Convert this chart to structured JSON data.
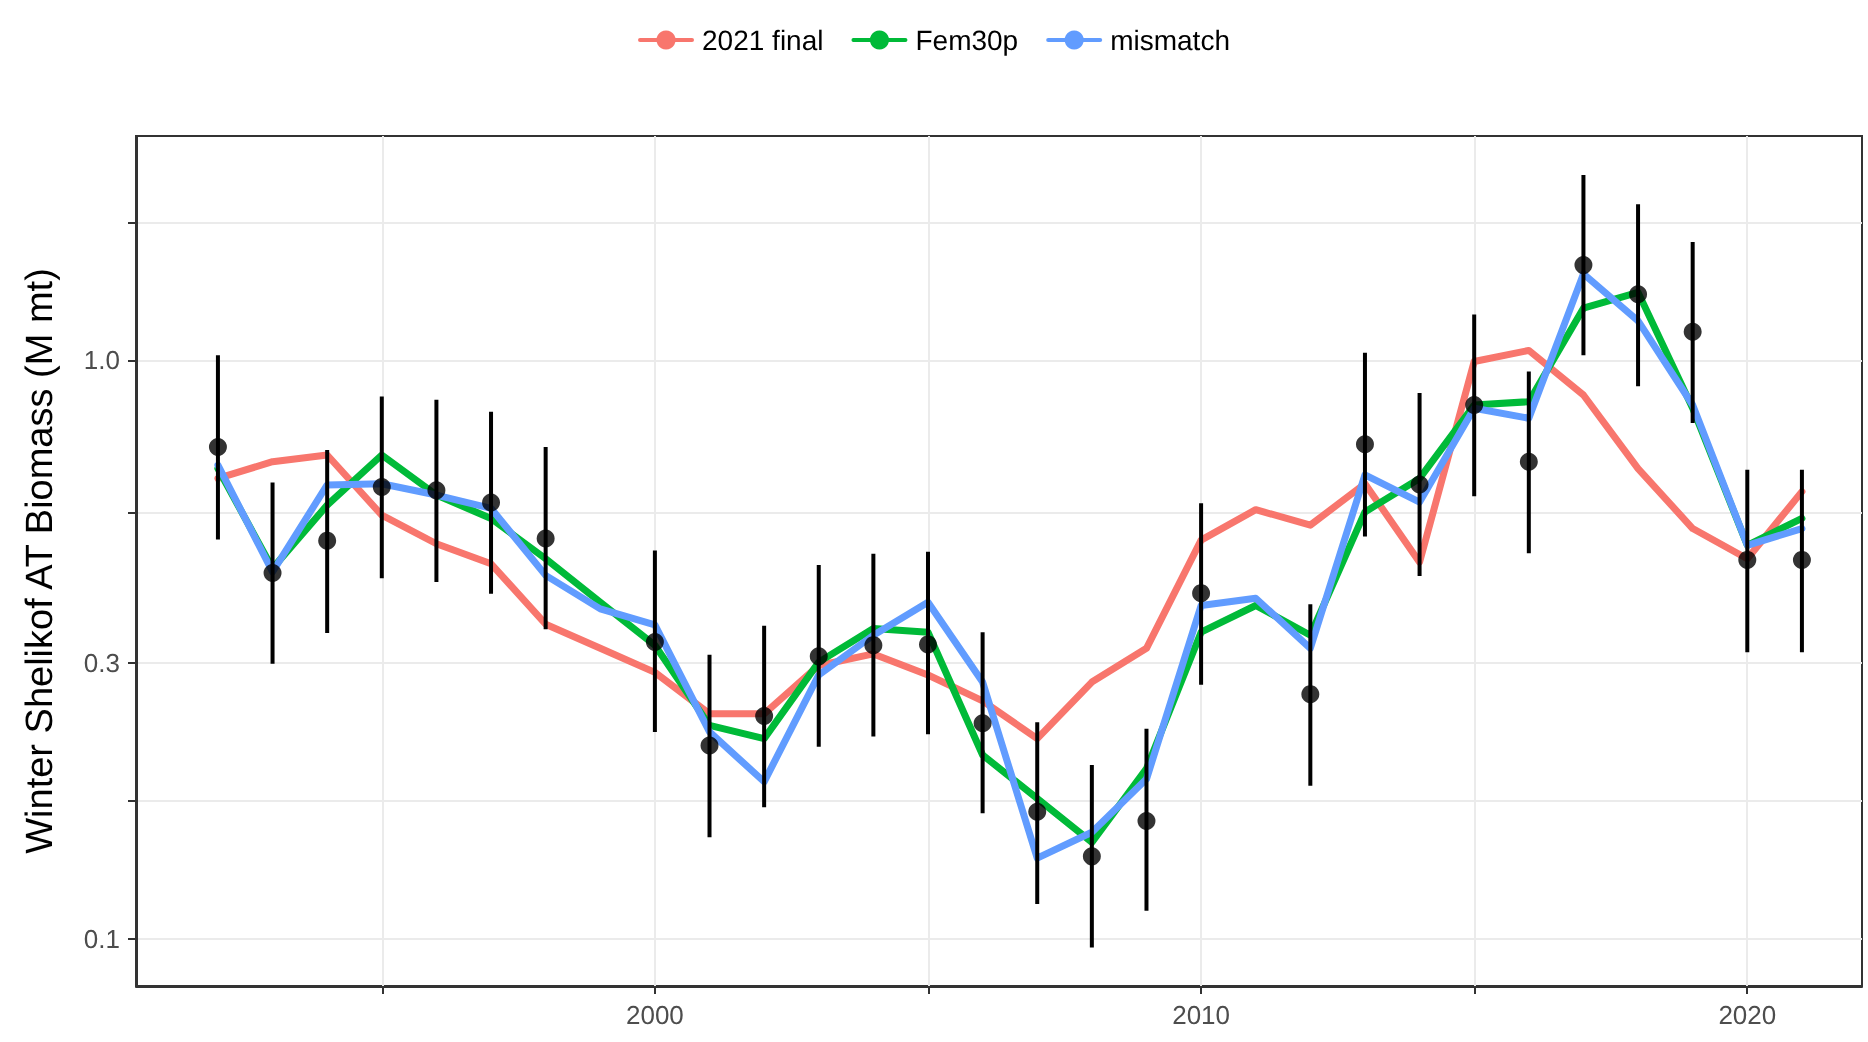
{
  "chart_data": {
    "type": "line",
    "ylabel": "Winter Shelikof AT Biomass (M mt)",
    "log": "y",
    "grid": true,
    "legend": "top",
    "line_style": "solid",
    "xlim": [
      1990.5,
      2022.1
    ],
    "xticks": [
      {
        "value": 1995,
        "label": null
      },
      2000,
      {
        "value": 2005,
        "label": null
      },
      2010,
      {
        "value": 2015,
        "label": null
      },
      2020
    ],
    "ylim": [
      0.083,
      2.44
    ],
    "yticks": [
      0.1,
      {
        "value": 0.173,
        "label": null
      },
      0.3,
      {
        "value": 0.546,
        "label": null
      },
      {
        "value": 1,
        "label": "1.0"
      },
      {
        "value": 1.73,
        "label": null
      }
    ],
    "x": [
      1992,
      1993,
      1994,
      1995,
      1996,
      1997,
      1998,
      1999,
      2000,
      2001,
      2002,
      2003,
      2004,
      2005,
      2006,
      2007,
      2008,
      2009,
      2010,
      2011,
      2012,
      2013,
      2014,
      2015,
      2016,
      2017,
      2018,
      2019,
      2020,
      2021
    ],
    "series": [
      {
        "name": "2021 final",
        "type": "line",
        "marker": "none",
        "color": "#f8766d",
        "values": [
          0.625,
          0.668,
          0.686,
          0.54,
          0.482,
          0.445,
          0.35,
          0.318,
          0.289,
          0.245,
          0.245,
          0.297,
          0.311,
          0.286,
          0.258,
          0.222,
          0.278,
          0.318,
          0.489,
          0.552,
          0.519,
          0.612,
          0.448,
          0.995,
          1.04,
          0.871,
          0.65,
          0.512,
          0.454,
          0.593
        ]
      },
      {
        "name": "Fem30p",
        "type": "line",
        "marker": "none",
        "color": "#00ba38",
        "values": [
          0.65,
          0.437,
          0.562,
          0.686,
          0.585,
          0.533,
          0.454,
          0.382,
          0.322,
          0.234,
          0.222,
          0.301,
          0.344,
          0.339,
          0.208,
          0.175,
          0.147,
          0.197,
          0.339,
          0.377,
          0.335,
          0.547,
          0.625,
          0.837,
          0.848,
          1.23,
          1.31,
          0.826,
          0.479,
          0.533
        ]
      },
      {
        "name": "mismatch",
        "type": "line",
        "marker": "none",
        "color": "#619cff",
        "values": [
          0.659,
          0.431,
          0.609,
          0.612,
          0.585,
          0.555,
          0.425,
          0.372,
          0.349,
          0.228,
          0.187,
          0.286,
          0.335,
          0.382,
          0.278,
          0.138,
          0.153,
          0.189,
          0.377,
          0.388,
          0.318,
          0.634,
          0.569,
          0.826,
          0.794,
          1.41,
          1.17,
          0.837,
          0.479,
          0.512
        ]
      },
      {
        "type": "scatter",
        "marker": "circle",
        "color": "#000000",
        "x": [
          1992,
          1993,
          1994,
          1995,
          1996,
          1997,
          1998,
          2000,
          2001,
          2002,
          2003,
          2004,
          2005,
          2006,
          2007,
          2008,
          2009,
          2010,
          2012,
          2013,
          2014,
          2015,
          2016,
          2017,
          2018,
          2019,
          2020,
          2021
        ],
        "values": [
          0.708,
          0.429,
          0.488,
          0.604,
          0.596,
          0.568,
          0.492,
          0.326,
          0.216,
          0.243,
          0.308,
          0.322,
          0.323,
          0.236,
          0.166,
          0.139,
          0.16,
          0.396,
          0.265,
          0.716,
          0.61,
          0.837,
          0.668,
          1.46,
          1.3,
          1.12,
          0.452,
          0.452
        ],
        "errors": [
          [
            0.49,
            1.02
          ],
          [
            0.299,
            0.615
          ],
          [
            0.338,
            0.7
          ],
          [
            0.42,
            0.866
          ],
          [
            0.414,
            0.855
          ],
          [
            0.395,
            0.815
          ],
          [
            0.343,
            0.708
          ],
          [
            0.228,
            0.469
          ],
          [
            0.15,
            0.31
          ],
          [
            0.169,
            0.348
          ],
          [
            0.215,
            0.443
          ],
          [
            0.224,
            0.463
          ],
          [
            0.226,
            0.467
          ],
          [
            0.165,
            0.339
          ],
          [
            0.115,
            0.237
          ],
          [
            0.0967,
            0.2
          ],
          [
            0.112,
            0.231
          ],
          [
            0.275,
            0.566
          ],
          [
            0.184,
            0.379
          ],
          [
            0.496,
            1.03
          ],
          [
            0.424,
            0.878
          ],
          [
            0.582,
            1.2
          ],
          [
            0.464,
            0.956
          ],
          [
            1.02,
            2.09
          ],
          [
            0.902,
            1.86
          ],
          [
            0.779,
            1.6
          ],
          [
            0.313,
            0.647
          ],
          [
            0.313,
            0.647
          ]
        ]
      }
    ]
  }
}
